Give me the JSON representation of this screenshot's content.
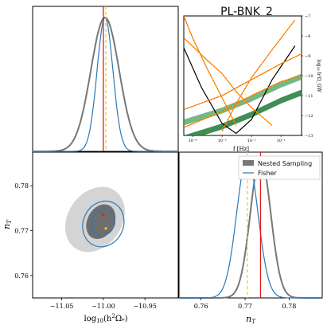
{
  "figure_title": "PL-BNK_2",
  "colors": {
    "nested": "#777777",
    "nested_fill_inner": "#6e6e6e",
    "nested_fill_outer": "#cfcfcf",
    "fisher": "#2b78b8",
    "truth": "#e31a1c",
    "estimate": "#f2c81a",
    "green_band": "#1f7a36",
    "orange": "#ff9a00"
  },
  "legend": {
    "nested": "Nested Sampling",
    "fisher": "Fisher"
  },
  "axes": {
    "x_logomega_label": "log₁₀(h²Ω*)",
    "y_nt_label": "nT",
    "x_nt_label": "nT",
    "inset_xlabel": "f [Hz]",
    "inset_ylabel": "log₁₀ h²Ω_GW",
    "logomega_ticks": [
      "−11.05",
      "−11.00",
      "−10.95"
    ],
    "nt_ticks_left": [
      "0.78",
      "0.77",
      "0.76"
    ],
    "nt_ticks_bottom": [
      "0.76",
      "0.77",
      "0.78"
    ],
    "inset_yticks": [
      "−7",
      "−8",
      "−9",
      "−10",
      "−11",
      "−12",
      "−13"
    ],
    "inset_xticks": [
      "10⁻⁴",
      "10⁻³",
      "10⁻²",
      "10⁻¹"
    ]
  },
  "chart_data": [
    {
      "type": "line",
      "panel": "1D marginal log10(h^2 Omega_*)",
      "xlim": [
        -11.085,
        -10.91
      ],
      "truth": -11.0,
      "estimate": -10.997,
      "series": [
        {
          "name": "Nested Sampling",
          "center": -10.998,
          "sigma": 0.017
        },
        {
          "name": "Fisher",
          "center": -10.998,
          "sigma": 0.0095
        }
      ]
    },
    {
      "type": "line",
      "panel": "1D marginal nT",
      "xlim": [
        0.755,
        0.7875
      ],
      "truth": 0.7735,
      "estimate": 0.7705,
      "series": [
        {
          "name": "Nested Sampling",
          "center": 0.7735,
          "sigma": 0.0023
        },
        {
          "name": "Fisher",
          "center": 0.7705,
          "sigma": 0.0024
        }
      ]
    },
    {
      "type": "scatter",
      "panel": "2D posterior log10(h^2 Omega_*) vs nT",
      "xlim": [
        -11.085,
        -10.91
      ],
      "ylim": [
        0.755,
        0.7875
      ],
      "truth": {
        "x": -11.0,
        "y": 0.7735
      },
      "estimate": {
        "x": -10.997,
        "y": 0.7705
      },
      "contours": [
        {
          "name": "Nested Sampling 95%",
          "cx": -11.01,
          "cy": 0.7725,
          "rx": 0.042,
          "ry": 0.006,
          "rotation_deg": -55
        },
        {
          "name": "Nested Sampling 68%",
          "cx": -11.003,
          "cy": 0.772,
          "rx": 0.022,
          "ry": 0.003,
          "rotation_deg": -62
        },
        {
          "name": "Fisher 95%",
          "cx": -11.0,
          "cy": 0.7715,
          "rx": 0.028,
          "ry": 0.0045,
          "rotation_deg": -66
        },
        {
          "name": "Fisher 68%",
          "cx": -11.0,
          "cy": 0.7718,
          "rx": 0.016,
          "ry": 0.0025,
          "rotation_deg": -66
        }
      ]
    },
    {
      "type": "line",
      "panel": "inset spectrum",
      "xscale": "log",
      "xlim": [
        5e-05,
        0.5
      ],
      "ylim": [
        -13,
        -7
      ],
      "series": [
        {
          "name": "black curve",
          "points": [
            [
              5e-05,
              -8.6
            ],
            [
              0.0002,
              -10.6
            ],
            [
              0.001,
              -12.4
            ],
            [
              0.003,
              -12.9
            ],
            [
              0.01,
              -12.2
            ],
            [
              0.05,
              -10.2
            ],
            [
              0.3,
              -8.5
            ]
          ]
        },
        {
          "name": "orange 1",
          "points": [
            [
              5e-05,
              -7.0
            ],
            [
              0.0001,
              -8.1
            ],
            [
              0.0003,
              -9.6
            ],
            [
              0.001,
              -11.1
            ],
            [
              0.003,
              -12.5
            ]
          ]
        },
        {
          "name": "orange 2",
          "points": [
            [
              0.001,
              -12.8
            ],
            [
              0.003,
              -11.4
            ],
            [
              0.01,
              -10.1
            ],
            [
              0.05,
              -8.7
            ],
            [
              0.3,
              -7.2
            ]
          ]
        },
        {
          "name": "orange 3",
          "points": [
            [
              5e-05,
              -8.1
            ],
            [
              0.0003,
              -9.2
            ],
            [
              0.001,
              -9.9
            ],
            [
              0.003,
              -10.8
            ],
            [
              0.01,
              -11.6
            ],
            [
              0.05,
              -12.5
            ]
          ]
        },
        {
          "name": "orange 4",
          "points": [
            [
              5e-05,
              -11.7
            ],
            [
              0.001,
              -11.0
            ],
            [
              0.01,
              -10.2
            ],
            [
              0.1,
              -9.4
            ],
            [
              0.5,
              -8.9
            ]
          ]
        },
        {
          "name": "orange 5",
          "points": [
            [
              5e-05,
              -12.6
            ],
            [
              0.001,
              -11.8
            ],
            [
              0.01,
              -11.0
            ],
            [
              0.1,
              -10.3
            ],
            [
              0.5,
              -10.0
            ]
          ]
        },
        {
          "name": "green band",
          "points": [
            [
              5e-05,
              -13.0
            ],
            [
              0.001,
              -12.4
            ],
            [
              0.01,
              -11.8
            ],
            [
              0.1,
              -11.1
            ],
            [
              0.5,
              -10.7
            ]
          ]
        },
        {
          "name": "green band 2",
          "points": [
            [
              5e-05,
              -13.3
            ],
            [
              0.001,
              -12.7
            ],
            [
              0.01,
              -12.1
            ],
            [
              0.1,
              -11.4
            ],
            [
              0.5,
              -11.0
            ]
          ]
        }
      ]
    }
  ]
}
